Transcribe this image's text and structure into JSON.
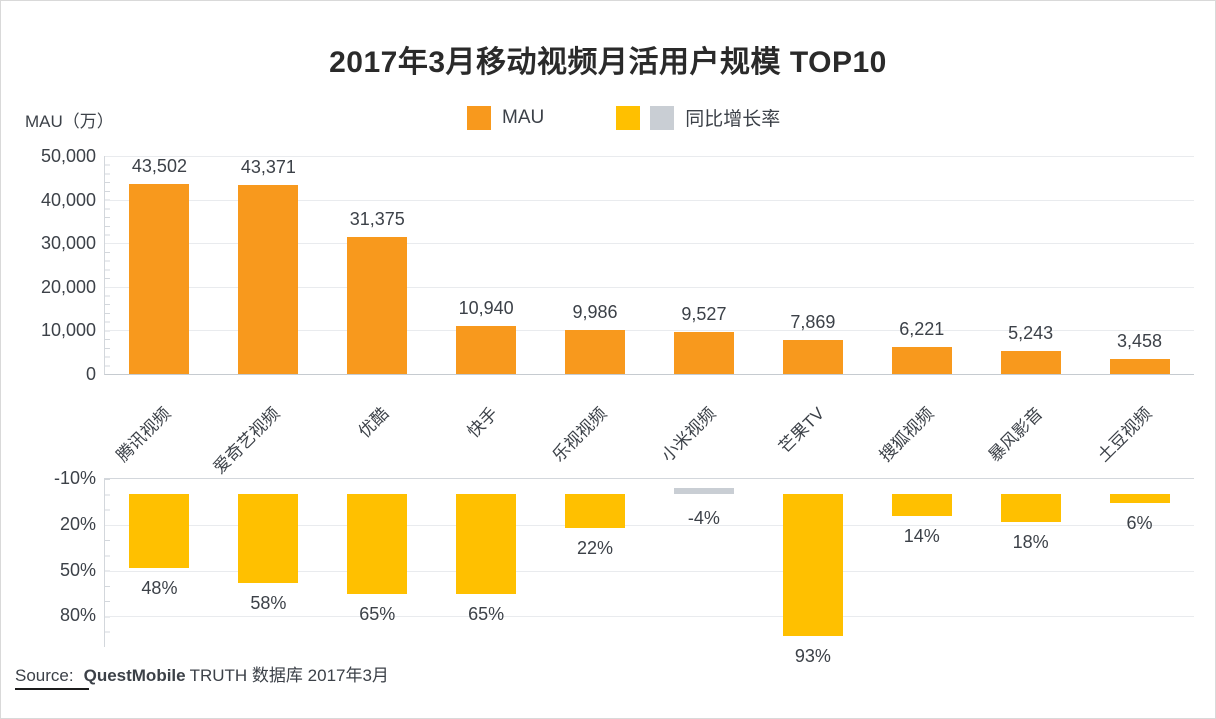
{
  "title": "2017年3月移动视频月活用户规模 TOP10",
  "axis_unit_label": "MAU（万）",
  "colors": {
    "mau": "#F8991D",
    "growth_positive": "#FFC000",
    "growth_negative": "#C9CED4",
    "grid": "#E9EBEE",
    "axis": "#D3D7DC",
    "text": "#3C4148"
  },
  "legend": [
    {
      "label": "MAU",
      "swatches": [
        "#F8991D"
      ]
    },
    {
      "label": "同比增长率",
      "swatches": [
        "#FFC000",
        "#C9CED4"
      ]
    }
  ],
  "source": {
    "prefix": "Source:",
    "brand": "QuestMobile",
    "rest": "TRUTH 数据库 2017年3月"
  },
  "chart_data": [
    {
      "type": "bar",
      "name": "MAU",
      "title": "2017年3月移动视频月活用户规模 TOP10",
      "ylabel": "MAU（万）",
      "categories": [
        "腾讯视频",
        "爱奇艺视频",
        "优酷",
        "快手",
        "乐视视频",
        "小米视频",
        "芒果TV",
        "搜狐视频",
        "暴风影音",
        "土豆视频"
      ],
      "values": [
        43502,
        43371,
        31375,
        10940,
        9986,
        9527,
        7869,
        6221,
        5243,
        3458
      ],
      "value_labels": [
        "43,502",
        "43,371",
        "31,375",
        "10,940",
        "9,986",
        "9,527",
        "7,869",
        "6,221",
        "5,243",
        "3,458"
      ],
      "ylim": [
        0,
        50000
      ],
      "ytick_values": [
        0,
        10000,
        20000,
        30000,
        40000,
        50000
      ],
      "ytick_labels": [
        "0",
        "10,000",
        "20,000",
        "30,000",
        "40,000",
        "50,000"
      ],
      "grid": true,
      "legend_position": "top",
      "bar_color": "#F8991D"
    },
    {
      "type": "bar",
      "name": "同比增长率",
      "inverted_axis": true,
      "categories": [
        "腾讯视频",
        "爱奇艺视频",
        "优酷",
        "快手",
        "乐视视频",
        "小米视频",
        "芒果TV",
        "搜狐视频",
        "暴风影音",
        "土豆视频"
      ],
      "values": [
        48,
        58,
        65,
        65,
        22,
        -4,
        93,
        14,
        18,
        6
      ],
      "value_labels": [
        "48%",
        "58%",
        "65%",
        "65%",
        "22%",
        "-4%",
        "93%",
        "14%",
        "18%",
        "6%"
      ],
      "ylim": [
        -10,
        100
      ],
      "ytick_values": [
        -10,
        20,
        50,
        80
      ],
      "ytick_labels": [
        "-10%",
        "20%",
        "50%",
        "80%"
      ],
      "grid": true,
      "positive_color": "#FFC000",
      "negative_color": "#C9CED4"
    }
  ]
}
